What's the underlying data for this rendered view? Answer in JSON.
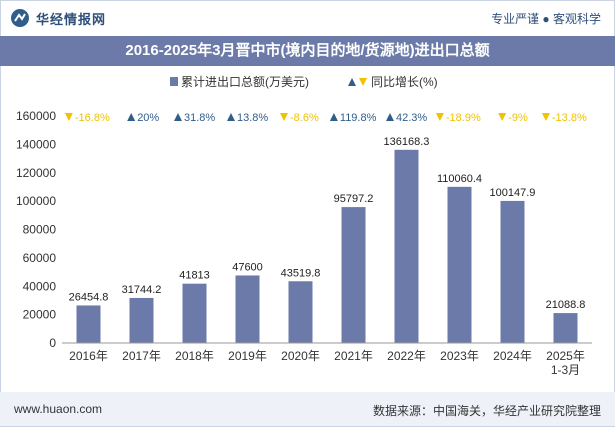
{
  "header": {
    "brand": "华经情报网",
    "tagline": "专业严谨 ● 客观科学"
  },
  "footer": {
    "site": "www.huaon.com",
    "source": "数据来源：中国海关，华经产业研究院整理"
  },
  "colors": {
    "bar": "#6b7aa8",
    "up": "#2f5e8c",
    "down": "#f2c200",
    "title_band": "#6b7aa8"
  },
  "chart_data": {
    "type": "bar",
    "title": "2016-2025年3月晋中市(境内目的地/货源地)进出口总额",
    "categories": [
      "2016年",
      "2017年",
      "2018年",
      "2019年",
      "2020年",
      "2021年",
      "2022年",
      "2023年",
      "2024年",
      "2025年\n1-3月"
    ],
    "series": [
      {
        "name": "累计进出口总额(万美元)",
        "values": [
          26454.8,
          31744.2,
          41813,
          47600,
          43519.8,
          95797.2,
          136168.3,
          110060.4,
          100147.9,
          21088.8
        ],
        "labels": [
          "26454.8",
          "31744.2",
          "41813",
          "47600",
          "43519.8",
          "95797.2",
          "136168.3",
          "110060.4",
          "100147.9",
          "21088.8"
        ]
      },
      {
        "name": "同比增长(%)",
        "values": [
          -16.8,
          20,
          31.8,
          13.8,
          -8.6,
          119.8,
          42.3,
          -18.9,
          -9,
          -13.8
        ],
        "labels": [
          "-16.8%",
          "20%",
          "31.8%",
          "13.8%",
          "-8.6%",
          "119.8%",
          "42.3%",
          "-18.9%",
          "-9%",
          "-13.8%"
        ]
      }
    ],
    "yticks": [
      "0",
      "20000",
      "40000",
      "60000",
      "80000",
      "100000",
      "120000",
      "140000",
      "160000"
    ],
    "ylim": [
      0,
      160000
    ],
    "grid": false,
    "legend": "top-center"
  }
}
